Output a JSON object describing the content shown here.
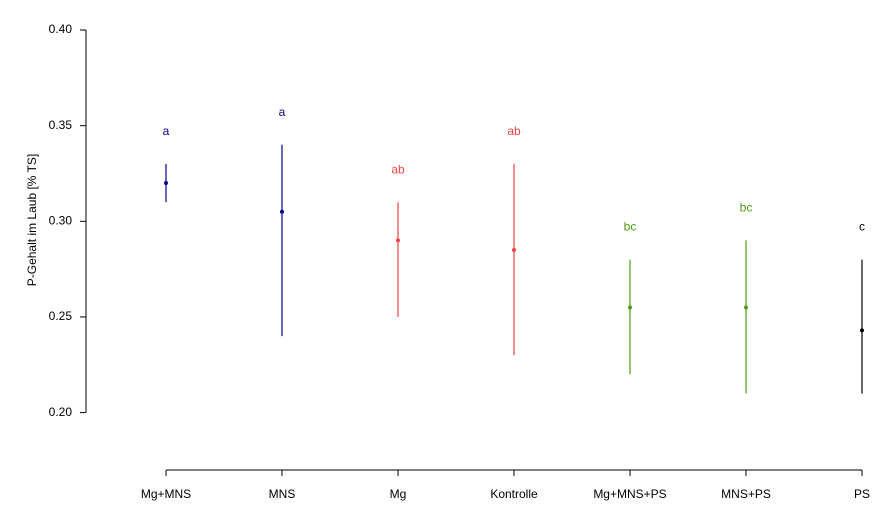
{
  "chart_data": {
    "type": "errorbar",
    "y_label": "P-Gehalt im Laub [% TS]",
    "categories": [
      "Mg+MNS",
      "MNS",
      "Mg",
      "Kontrolle",
      "Mg+MNS+PS",
      "MNS+PS",
      "PS"
    ],
    "values": [
      0.32,
      0.305,
      0.29,
      0.285,
      0.255,
      0.255,
      0.243
    ],
    "lower": [
      0.31,
      0.24,
      0.25,
      0.23,
      0.22,
      0.21,
      0.21
    ],
    "upper": [
      0.33,
      0.34,
      0.31,
      0.33,
      0.28,
      0.29,
      0.28
    ],
    "group_labels": [
      "a",
      "a",
      "ab",
      "ab",
      "bc",
      "bc",
      "c"
    ],
    "colors": [
      "#00008b",
      "#00008b",
      "#ee4444",
      "#ee4444",
      "#4d9a0c",
      "#4d9a0c",
      "#000000"
    ],
    "ylim": [
      0.17,
      0.4
    ],
    "yticks": [
      {
        "value": 0.2,
        "label": "0.20"
      },
      {
        "value": 0.25,
        "label": "0.25"
      },
      {
        "value": 0.3,
        "label": "0.30"
      },
      {
        "value": 0.35,
        "label": "0.35"
      },
      {
        "value": 0.4,
        "label": "0.40"
      }
    ]
  }
}
